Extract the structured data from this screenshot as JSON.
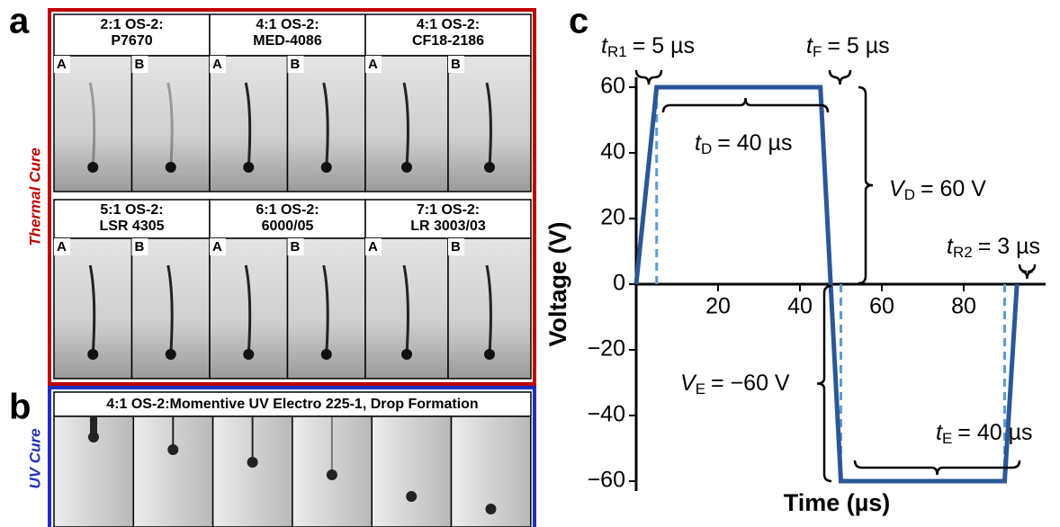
{
  "figure": {
    "panels": {
      "a": {
        "label": "a",
        "side_label": "Thermal Cure",
        "groups": [
          {
            "title": [
              "2:1 OS-2:",
              "P7670"
            ],
            "images": [
              "A",
              "B"
            ]
          },
          {
            "title": [
              "4:1 OS-2:",
              "MED-4086"
            ],
            "images": [
              "A",
              "B"
            ]
          },
          {
            "title": [
              "4:1 OS-2:",
              "CF18-2186"
            ],
            "images": [
              "A",
              "B"
            ]
          },
          {
            "title": [
              "5:1 OS-2:",
              "LSR 4305"
            ],
            "images": [
              "A",
              "B"
            ]
          },
          {
            "title": [
              "6:1 OS-2:",
              "6000/05"
            ],
            "images": [
              "A",
              "B"
            ]
          },
          {
            "title": [
              "7:1 OS-2:",
              "LR 3003/03"
            ],
            "images": [
              "A",
              "B"
            ]
          }
        ]
      },
      "b": {
        "label": "b",
        "side_label": "UV Cure",
        "title": "4:1 OS-2:Momentive UV Electro 225-1, Drop Formation"
      },
      "c": {
        "label": "c"
      }
    }
  },
  "chart_data": {
    "type": "line",
    "x_label": "Time (µs)",
    "y_label": "Voltage (V)",
    "x": [
      0,
      5,
      45,
      50,
      90,
      93
    ],
    "series": [
      {
        "color": "#2b5797",
        "values": [
          0,
          60,
          60,
          -60,
          -60,
          0
        ]
      }
    ],
    "xlim": [
      0,
      100
    ],
    "ylim": [
      -63,
      63
    ],
    "xticks": [
      20,
      40,
      60,
      80
    ],
    "yticks": [
      {
        "value": -60,
        "label": "−60"
      },
      {
        "value": -40,
        "label": "−40"
      },
      {
        "value": -20,
        "label": "−20"
      },
      0,
      20,
      40,
      60
    ],
    "grid": false,
    "dash_color": "#5b9bd5",
    "annotations": [
      {
        "symbol": "t",
        "subscript": "R1",
        "text": "= 5 µs"
      },
      {
        "symbol": "t",
        "subscript": "F",
        "text": "= 5 µs"
      },
      {
        "symbol": "t",
        "subscript": "D",
        "text": "= 40 µs"
      },
      {
        "symbol": "V",
        "subscript": "D",
        "text": "= 60 V"
      },
      {
        "symbol": "t",
        "subscript": "R2",
        "text": "= 3 µs"
      },
      {
        "symbol": "V",
        "subscript": "E",
        "text": "= −60 V"
      },
      {
        "symbol": "t",
        "subscript": "E",
        "text": "= 40 µs"
      }
    ]
  }
}
